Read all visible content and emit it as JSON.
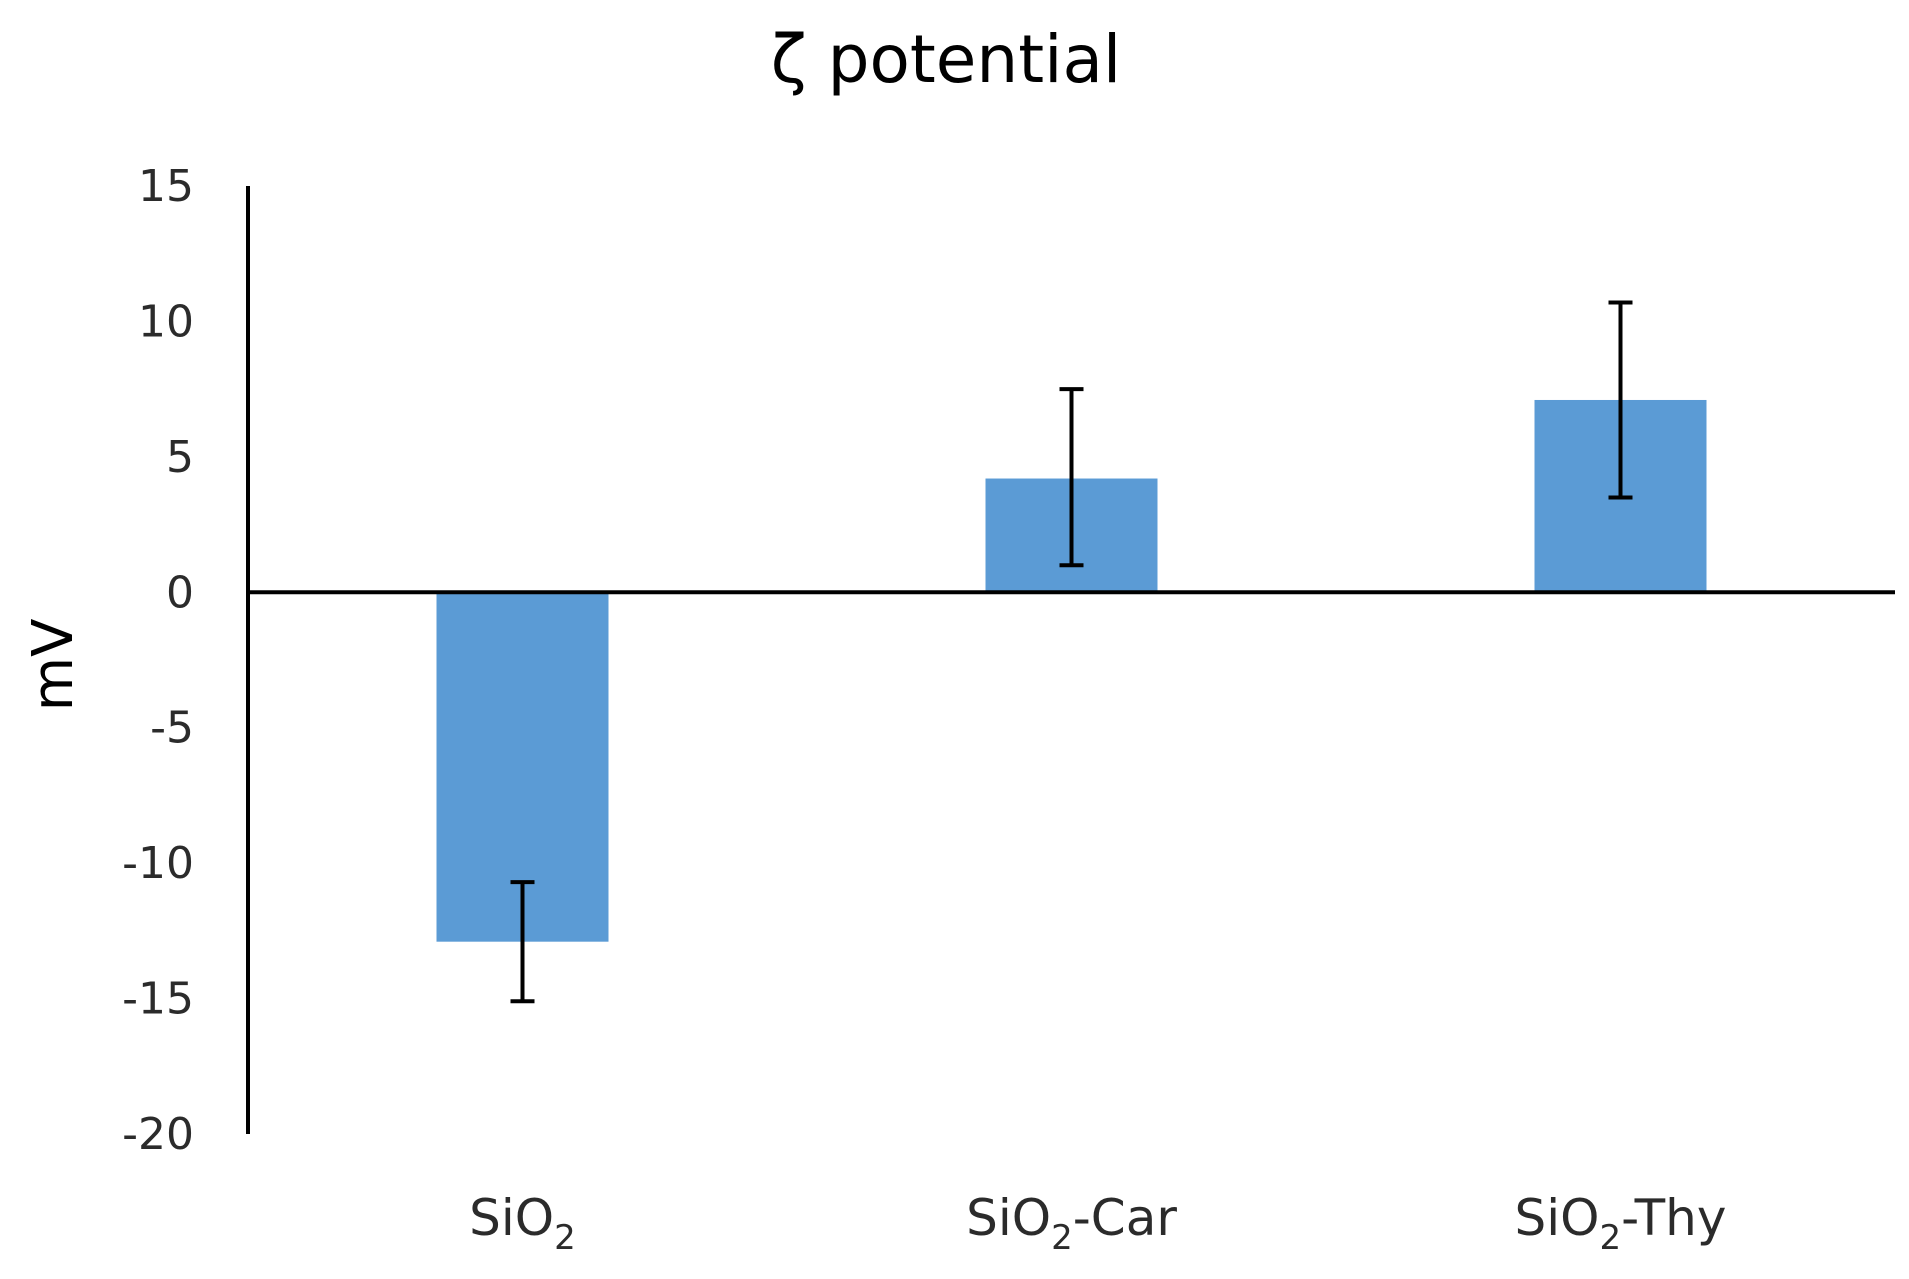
{
  "chart_data": {
    "type": "bar",
    "title": "ζ potential",
    "xlabel": "",
    "ylabel": "mV",
    "ylim": [
      -20,
      15
    ],
    "yticks": [
      15,
      10,
      5,
      0,
      -5,
      -10,
      -15,
      -20
    ],
    "ytick_labels": [
      "15",
      "10",
      "5",
      "0",
      "-5",
      "-10",
      "-15",
      "-20"
    ],
    "grid": false,
    "categories": [
      {
        "base": "SiO",
        "sub": "2",
        "suffix": ""
      },
      {
        "base": "SiO",
        "sub": "2",
        "suffix": "-Car"
      },
      {
        "base": "SiO",
        "sub": "2",
        "suffix": "-Thy"
      }
    ],
    "values": [
      -12.9,
      4.2,
      7.1
    ],
    "error_low": [
      -15.1,
      1.0,
      3.5
    ],
    "error_high": [
      -10.7,
      7.5,
      10.7
    ],
    "bar_color": "#5b9bd5",
    "axis_color": "#000000"
  }
}
